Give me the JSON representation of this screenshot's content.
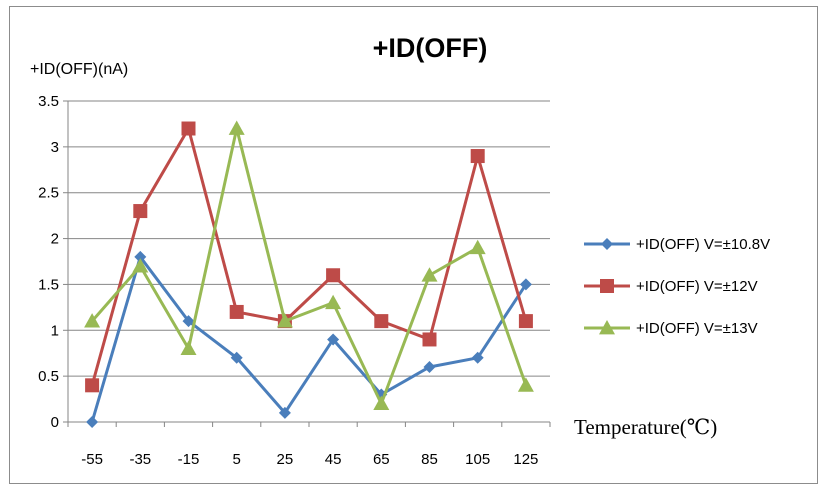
{
  "chart_data": {
    "type": "line",
    "title": "+ID(OFF)",
    "ylabel": "+ID(OFF)(nA)",
    "xlabel": "Temperature(℃)",
    "categories": [
      "-55",
      "-35",
      "-15",
      "5",
      "25",
      "45",
      "65",
      "85",
      "105",
      "125"
    ],
    "y_ticks": [
      "0",
      "0.5",
      "1",
      "1.5",
      "2",
      "2.5",
      "3",
      "3.5"
    ],
    "ylim": [
      0,
      3.5
    ],
    "grid": "horizontal",
    "legend_position": "right",
    "series": [
      {
        "name": "+ID(OFF) V=±10.8V",
        "color": "#4a7ebb",
        "marker": "diamond",
        "values": [
          0,
          1.8,
          1.1,
          0.7,
          0.1,
          0.9,
          0.3,
          0.6,
          0.7,
          1.5
        ]
      },
      {
        "name": "+ID(OFF) V=±12V",
        "color": "#be4b48",
        "marker": "square",
        "values": [
          0.4,
          2.3,
          3.2,
          1.2,
          1.1,
          1.6,
          1.1,
          0.9,
          2.9,
          1.1
        ]
      },
      {
        "name": "+ID(OFF) V=±13V",
        "color": "#98b954",
        "marker": "triangle",
        "values": [
          1.1,
          1.7,
          0.8,
          3.2,
          1.1,
          1.3,
          0.2,
          1.6,
          1.9,
          0.4
        ]
      }
    ]
  }
}
